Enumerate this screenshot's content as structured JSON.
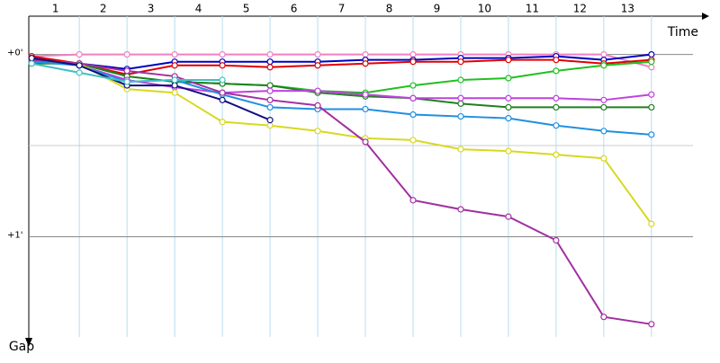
{
  "chart_data": {
    "type": "line",
    "x_label": "Time",
    "y_label": "Gap",
    "xlim": [
      -0.06,
      14.06
    ],
    "ylim": [
      -0.21,
      1.55
    ],
    "xticks": [
      {
        "value": 0.5,
        "label": "1"
      },
      {
        "value": 1.5,
        "label": "2"
      },
      {
        "value": 2.5,
        "label": "3"
      },
      {
        "value": 3.5,
        "label": "4"
      },
      {
        "value": 4.5,
        "label": "5"
      },
      {
        "value": 5.5,
        "label": "6"
      },
      {
        "value": 6.5,
        "label": "7"
      },
      {
        "value": 7.5,
        "label": "8"
      },
      {
        "value": 8.5,
        "label": "9"
      },
      {
        "value": 9.5,
        "label": "10"
      },
      {
        "value": 10.5,
        "label": "11"
      },
      {
        "value": 11.5,
        "label": "12"
      },
      {
        "value": 12.5,
        "label": "13"
      }
    ],
    "xgrid": [
      1,
      2,
      3,
      4,
      5,
      6,
      7,
      8,
      9,
      10,
      11,
      12,
      13
    ],
    "yticks": [
      {
        "value": 0,
        "label": "+0'"
      },
      {
        "value": 1,
        "label": "+1'"
      }
    ],
    "ygrid": [
      0,
      0.5,
      1
    ],
    "series": [
      {
        "color": "#f080c0",
        "x": [
          0,
          1,
          2,
          3,
          4,
          5,
          6,
          7,
          8,
          9,
          10,
          11,
          12,
          13
        ],
        "values": [
          0.01,
          0,
          0,
          0,
          0,
          0,
          0,
          0,
          0,
          0,
          0,
          0,
          0,
          0.07
        ]
      },
      {
        "color": "#0000c0",
        "x": [
          0,
          1,
          2,
          3,
          4,
          5,
          6,
          7,
          8,
          9,
          10,
          11,
          12,
          13
        ],
        "values": [
          0.02,
          0.05,
          0.08,
          0.04,
          0.04,
          0.04,
          0.04,
          0.03,
          0.03,
          0.02,
          0.02,
          0.01,
          0.03,
          0
        ]
      },
      {
        "color": "#e00000",
        "x": [
          0,
          1,
          2,
          3,
          4,
          5,
          6,
          7,
          8,
          9,
          10,
          11,
          12,
          13
        ],
        "values": [
          0.01,
          0.05,
          0.11,
          0.06,
          0.06,
          0.07,
          0.06,
          0.05,
          0.04,
          0.04,
          0.03,
          0.03,
          0.05,
          0.03
        ]
      },
      {
        "color": "#20c020",
        "x": [
          0,
          1,
          2,
          3,
          4,
          5,
          6,
          7,
          8,
          9,
          10,
          11,
          12,
          13
        ],
        "values": [
          0.04,
          0.05,
          0.12,
          0.15,
          0.16,
          0.17,
          0.2,
          0.21,
          0.17,
          0.14,
          0.13,
          0.09,
          0.06,
          0.04
        ]
      },
      {
        "color": "#208020",
        "x": [
          0,
          1,
          2,
          3,
          4,
          5,
          6,
          7,
          8,
          9,
          10,
          11,
          12,
          13
        ],
        "values": [
          0.05,
          0.05,
          0.12,
          0.15,
          0.16,
          0.17,
          0.21,
          0.23,
          0.24,
          0.27,
          0.29,
          0.29,
          0.29,
          0.29
        ]
      },
      {
        "color": "#c040e0",
        "x": [
          0,
          1,
          2,
          3,
          4,
          5,
          6,
          7,
          8,
          9,
          10,
          11,
          12,
          13
        ],
        "values": [
          0.02,
          0.06,
          0.14,
          0.18,
          0.21,
          0.2,
          0.2,
          0.22,
          0.24,
          0.24,
          0.24,
          0.24,
          0.25,
          0.22
        ]
      },
      {
        "color": "#2090e0",
        "x": [
          0,
          1,
          2,
          3,
          4,
          5,
          6,
          7,
          8,
          9,
          10,
          11,
          12,
          13
        ],
        "values": [
          0.04,
          0.06,
          0.15,
          0.14,
          0.22,
          0.29,
          0.3,
          0.3,
          0.33,
          0.34,
          0.35,
          0.39,
          0.42,
          0.44
        ]
      },
      {
        "color": "#d8d820",
        "x": [
          0,
          1,
          2,
          3,
          4,
          5,
          6,
          7,
          8,
          9,
          10,
          11,
          12,
          13
        ],
        "values": [
          0.03,
          0.05,
          0.19,
          0.21,
          0.37,
          0.39,
          0.42,
          0.46,
          0.47,
          0.52,
          0.53,
          0.55,
          0.57,
          0.93
        ]
      },
      {
        "color": "#a030a0",
        "x": [
          0,
          1,
          2,
          3,
          4,
          5,
          6,
          7,
          8,
          9,
          10,
          11,
          12,
          13
        ],
        "values": [
          0.03,
          0.05,
          0.09,
          0.12,
          0.21,
          0.25,
          0.28,
          0.48,
          0.8,
          0.85,
          0.89,
          1.02,
          1.44,
          1.48
        ]
      },
      {
        "color": "#101080",
        "x": [
          0,
          1,
          2,
          3,
          4,
          5
        ],
        "values": [
          0.02,
          0.06,
          0.17,
          0.17,
          0.25,
          0.36
        ]
      },
      {
        "color": "#40c0c0",
        "x": [
          0,
          1,
          2,
          3,
          4
        ],
        "values": [
          0.05,
          0.1,
          0.15,
          0.14,
          0.14
        ]
      }
    ]
  }
}
